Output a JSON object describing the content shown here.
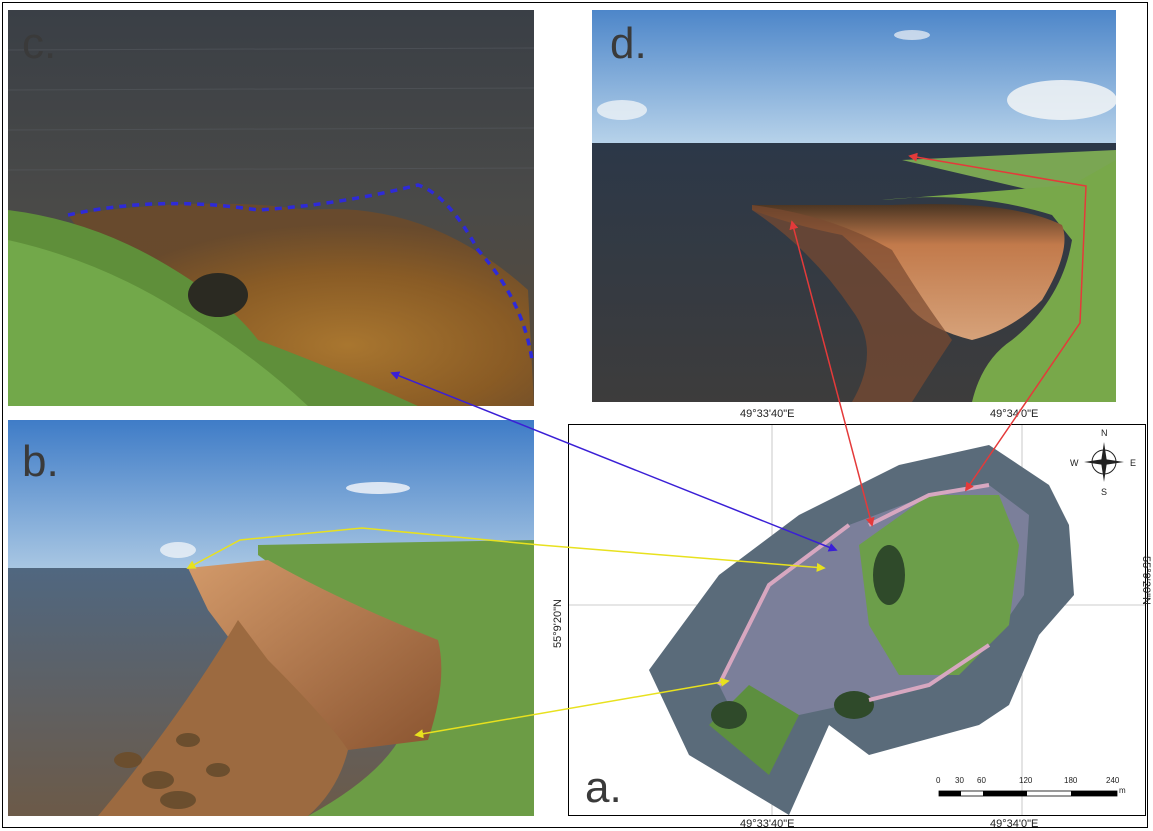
{
  "panels": {
    "c": {
      "label": "c."
    },
    "d": {
      "label": "d."
    },
    "b": {
      "label": "b."
    },
    "a": {
      "label": "a."
    }
  },
  "map": {
    "top_lon_1": "49°33'40\"E",
    "top_lon_2": "49°34'0\"E",
    "bottom_lon_1": "49°33'40\"E",
    "bottom_lon_2": "49°34'0\"E",
    "left_lat": "55°9'20\"N",
    "right_lat": "55°9'20\"N",
    "compass": {
      "n": "N",
      "s": "S",
      "e": "E",
      "w": "W"
    },
    "scale": {
      "ticks": [
        "0",
        "30",
        "60",
        "120",
        "180",
        "240"
      ],
      "unit": "m"
    }
  },
  "colors": {
    "blue_arrow": "#3a1fd6",
    "yellow_arrow": "#e8e11e",
    "red_arrow": "#e43a3a",
    "dotted_line": "#2e2ad8"
  }
}
